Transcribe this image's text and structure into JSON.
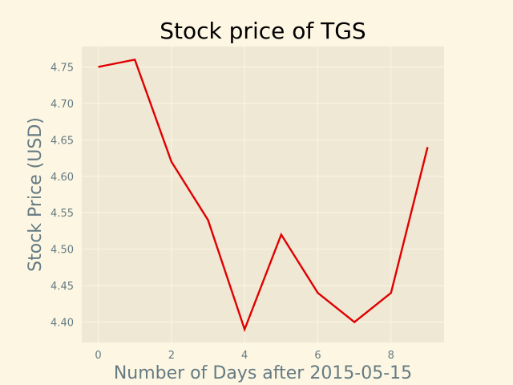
{
  "chart_data": {
    "type": "line",
    "title": "Stock price of TGS",
    "xlabel": "Number of Days after 2015-05-15",
    "ylabel": "Stock Price (USD)",
    "x": [
      0,
      1,
      2,
      3,
      4,
      5,
      6,
      7,
      8,
      9
    ],
    "series": [
      {
        "values": [
          4.75,
          4.76,
          4.62,
          4.54,
          4.39,
          4.52,
          4.44,
          4.4,
          4.44,
          4.64
        ]
      }
    ],
    "xlim": [
      -0.45,
      9.45
    ],
    "ylim": [
      4.372,
      4.778
    ],
    "xticks": [
      0,
      2,
      4,
      6,
      8
    ],
    "xtick_labels": [
      "0",
      "2",
      "4",
      "6",
      "8"
    ],
    "yticks": [
      4.4,
      4.45,
      4.5,
      4.55,
      4.6,
      4.65,
      4.7,
      4.75
    ],
    "ytick_labels": [
      "4.40",
      "4.45",
      "4.50",
      "4.55",
      "4.60",
      "4.65",
      "4.70",
      "4.75"
    ],
    "grid": true,
    "legend": false,
    "colors": {
      "figure_bg": "#fdf6e3",
      "plot_bg": "#eee8d5",
      "grid": "#fdf6e3",
      "line": "#e00000",
      "text": "#657b83",
      "title": "#000000"
    }
  }
}
